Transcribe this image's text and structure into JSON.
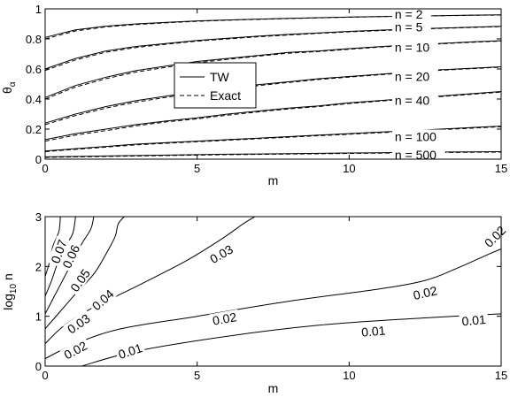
{
  "chart_data": [
    {
      "type": "line",
      "title": "",
      "xlabel": "m",
      "ylabel": "θ_α",
      "xlim": [
        0,
        15
      ],
      "ylim": [
        0,
        1
      ],
      "xticks": [
        "0",
        "5",
        "10",
        "15"
      ],
      "yticks": [
        "0",
        "0.2",
        "0.4",
        "0.6",
        "0.8",
        "1"
      ],
      "legend": {
        "placement": "center",
        "entries": [
          "TW",
          "Exact"
        ]
      },
      "x": [
        0,
        1,
        2,
        3,
        4,
        5,
        6,
        7,
        8,
        9,
        10,
        11,
        12,
        13,
        14,
        15
      ],
      "series": [
        {
          "group": "n = 2",
          "style": "solid",
          "values": [
            0.81,
            0.86,
            0.885,
            0.9,
            0.91,
            0.92,
            0.926,
            0.932,
            0.937,
            0.941,
            0.945,
            0.949,
            0.952,
            0.955,
            0.958,
            0.96
          ]
        },
        {
          "group": "n = 2",
          "style": "dashed",
          "values": [
            0.8,
            0.853,
            0.88,
            0.896,
            0.907,
            0.917,
            0.924,
            0.93,
            0.935,
            0.94,
            0.944,
            0.948,
            0.951,
            0.954,
            0.957,
            0.959
          ]
        },
        {
          "group": "n = 5",
          "style": "solid",
          "values": [
            0.6,
            0.67,
            0.72,
            0.75,
            0.77,
            0.79,
            0.805,
            0.818,
            0.83,
            0.84,
            0.85,
            0.858,
            0.865,
            0.872,
            0.878,
            0.884
          ]
        },
        {
          "group": "n = 5",
          "style": "dashed",
          "values": [
            0.59,
            0.66,
            0.712,
            0.743,
            0.765,
            0.785,
            0.8,
            0.814,
            0.826,
            0.837,
            0.847,
            0.855,
            0.863,
            0.87,
            0.876,
            0.882
          ]
        },
        {
          "group": "n = 10",
          "style": "solid",
          "values": [
            0.41,
            0.49,
            0.545,
            0.59,
            0.62,
            0.65,
            0.67,
            0.69,
            0.71,
            0.72,
            0.735,
            0.748,
            0.76,
            0.77,
            0.78,
            0.788
          ]
        },
        {
          "group": "n = 10",
          "style": "dashed",
          "values": [
            0.4,
            0.48,
            0.535,
            0.58,
            0.612,
            0.642,
            0.664,
            0.685,
            0.705,
            0.716,
            0.731,
            0.745,
            0.757,
            0.767,
            0.777,
            0.786
          ]
        },
        {
          "group": "n = 20",
          "style": "solid",
          "values": [
            0.24,
            0.3,
            0.35,
            0.39,
            0.42,
            0.45,
            0.47,
            0.495,
            0.515,
            0.535,
            0.55,
            0.565,
            0.58,
            0.595,
            0.605,
            0.615
          ]
        },
        {
          "group": "n = 20",
          "style": "dashed",
          "values": [
            0.23,
            0.29,
            0.34,
            0.38,
            0.412,
            0.442,
            0.463,
            0.489,
            0.51,
            0.53,
            0.546,
            0.561,
            0.576,
            0.591,
            0.602,
            0.612
          ]
        },
        {
          "group": "n = 40",
          "style": "solid",
          "values": [
            0.13,
            0.17,
            0.2,
            0.23,
            0.255,
            0.275,
            0.3,
            0.32,
            0.34,
            0.355,
            0.375,
            0.39,
            0.405,
            0.42,
            0.435,
            0.45
          ]
        },
        {
          "group": "n = 40",
          "style": "dashed",
          "values": [
            0.12,
            0.16,
            0.19,
            0.222,
            0.248,
            0.268,
            0.293,
            0.314,
            0.334,
            0.35,
            0.37,
            0.386,
            0.401,
            0.416,
            0.431,
            0.446
          ]
        },
        {
          "group": "n = 100",
          "style": "solid",
          "values": [
            0.055,
            0.07,
            0.085,
            0.1,
            0.11,
            0.12,
            0.13,
            0.14,
            0.15,
            0.16,
            0.17,
            0.18,
            0.19,
            0.2,
            0.21,
            0.22
          ]
        },
        {
          "group": "n = 100",
          "style": "dashed",
          "values": [
            0.05,
            0.065,
            0.08,
            0.095,
            0.106,
            0.116,
            0.126,
            0.136,
            0.146,
            0.156,
            0.166,
            0.176,
            0.186,
            0.196,
            0.206,
            0.216
          ]
        },
        {
          "group": "n = 500",
          "style": "solid",
          "values": [
            0.015,
            0.018,
            0.021,
            0.024,
            0.027,
            0.03,
            0.033,
            0.035,
            0.037,
            0.039,
            0.041,
            0.043,
            0.045,
            0.047,
            0.049,
            0.05
          ]
        },
        {
          "group": "n = 500",
          "style": "dashed",
          "values": [
            0.012,
            0.015,
            0.018,
            0.021,
            0.024,
            0.027,
            0.03,
            0.032,
            0.034,
            0.036,
            0.038,
            0.04,
            0.042,
            0.044,
            0.046,
            0.047
          ]
        }
      ],
      "annotations": [
        {
          "text": "n = 2",
          "x": 11.5,
          "y": 0.965
        },
        {
          "text": "n = 5",
          "x": 11.5,
          "y": 0.88
        },
        {
          "text": "n = 10",
          "x": 11.5,
          "y": 0.745
        },
        {
          "text": "n = 20",
          "x": 11.5,
          "y": 0.55
        },
        {
          "text": "n = 40",
          "x": 11.5,
          "y": 0.39
        },
        {
          "text": "n = 100",
          "x": 11.5,
          "y": 0.15
        },
        {
          "text": "n = 500",
          "x": 11.5,
          "y": 0.03
        }
      ],
      "grid": false
    },
    {
      "type": "contour",
      "title": "",
      "xlabel": "m",
      "ylabel": "log10 n",
      "xlim": [
        0,
        15
      ],
      "ylim": [
        0,
        3
      ],
      "xticks": [
        "0",
        "5",
        "10",
        "15"
      ],
      "yticks": [
        "0",
        "1",
        "2",
        "3"
      ],
      "levels": [
        {
          "level": "0.01",
          "points": [
            [
              1.2,
              0
            ],
            [
              3,
              0.3
            ],
            [
              6,
              0.6
            ],
            [
              9,
              0.82
            ],
            [
              12,
              0.95
            ],
            [
              15,
              1.05
            ]
          ]
        },
        {
          "level": "0.02",
          "points": [
            [
              0,
              0.15
            ],
            [
              1,
              0.45
            ],
            [
              2.5,
              0.75
            ],
            [
              5,
              1.0
            ],
            [
              8,
              1.3
            ],
            [
              11,
              1.55
            ],
            [
              12.5,
              1.72
            ],
            [
              13.5,
              1.95
            ],
            [
              14.6,
              2.25
            ],
            [
              15,
              2.35
            ]
          ]
        },
        {
          "level": "0.03",
          "points": [
            [
              0,
              0.45
            ],
            [
              0.6,
              0.8
            ],
            [
              1.5,
              1.15
            ],
            [
              3,
              1.6
            ],
            [
              4.6,
              2.1
            ],
            [
              5.8,
              2.55
            ],
            [
              6.5,
              2.85
            ],
            [
              6.9,
              3.0
            ]
          ]
        },
        {
          "level": "0.04",
          "points": [
            [
              0,
              0.75
            ],
            [
              0.5,
              1.1
            ],
            [
              1.0,
              1.45
            ],
            [
              1.6,
              1.85
            ],
            [
              2.0,
              2.25
            ],
            [
              2.3,
              2.6
            ],
            [
              2.4,
              2.85
            ],
            [
              2.6,
              3.0
            ]
          ]
        },
        {
          "level": "0.05",
          "points": [
            [
              0,
              1.05
            ],
            [
              0.3,
              1.4
            ],
            [
              0.6,
              1.75
            ],
            [
              0.9,
              2.1
            ],
            [
              1.2,
              2.45
            ],
            [
              1.5,
              2.75
            ],
            [
              1.6,
              3.0
            ]
          ]
        },
        {
          "level": "0.06",
          "points": [
            [
              0,
              1.4
            ],
            [
              0.2,
              1.7
            ],
            [
              0.4,
              2.05
            ],
            [
              0.6,
              2.35
            ],
            [
              0.9,
              2.65
            ],
            [
              1.0,
              3.0
            ]
          ]
        },
        {
          "level": "0.07",
          "points": [
            [
              0,
              1.8
            ],
            [
              0.15,
              2.1
            ],
            [
              0.25,
              2.4
            ],
            [
              0.45,
              2.7
            ],
            [
              0.5,
              3.0
            ]
          ]
        }
      ],
      "labels": [
        {
          "text": "0.01",
          "x": 2.8,
          "y": 0.3,
          "angle": -18
        },
        {
          "text": "0.01",
          "x": 10.8,
          "y": 0.7,
          "angle": -5
        },
        {
          "text": "0.01",
          "x": 14.1,
          "y": 0.92,
          "angle": -5
        },
        {
          "text": "0.02",
          "x": 1.0,
          "y": 0.32,
          "angle": -28
        },
        {
          "text": "0.02",
          "x": 5.9,
          "y": 0.95,
          "angle": -10
        },
        {
          "text": "0.02",
          "x": 12.5,
          "y": 1.47,
          "angle": -13
        },
        {
          "text": "0.02",
          "x": 14.8,
          "y": 2.6,
          "angle": -45
        },
        {
          "text": "0.03",
          "x": 1.1,
          "y": 0.85,
          "angle": -35
        },
        {
          "text": "0.03",
          "x": 5.8,
          "y": 2.25,
          "angle": -30
        },
        {
          "text": "0.04",
          "x": 1.9,
          "y": 1.33,
          "angle": -42
        },
        {
          "text": "0.05",
          "x": 1.15,
          "y": 1.72,
          "angle": -55
        },
        {
          "text": "0.06",
          "x": 0.85,
          "y": 2.2,
          "angle": -65
        },
        {
          "text": "0.07",
          "x": 0.45,
          "y": 2.3,
          "angle": -70
        }
      ],
      "grid": false
    }
  ]
}
